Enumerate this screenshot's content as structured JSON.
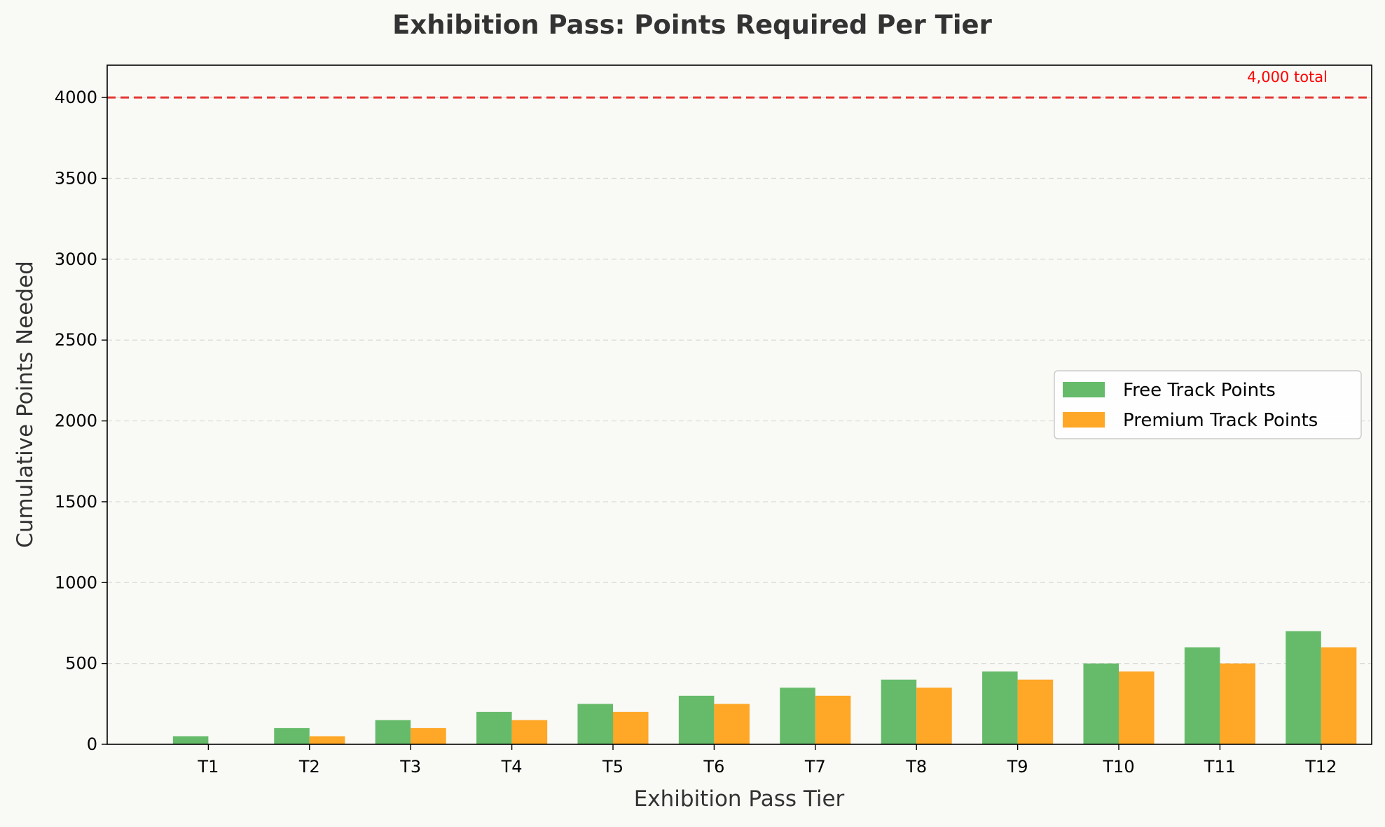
{
  "chart_data": {
    "type": "bar",
    "title": "Exhibition Pass: Points Required Per Tier",
    "xlabel": "Exhibition Pass Tier",
    "ylabel": "Cumulative Points Needed",
    "categories": [
      "T1",
      "T2",
      "T3",
      "T4",
      "T5",
      "T6",
      "T7",
      "T8",
      "T9",
      "T10",
      "T11",
      "T12"
    ],
    "series": [
      {
        "name": "Free Track Points",
        "color": "#66bb6a",
        "values": [
          50,
          100,
          150,
          200,
          250,
          300,
          350,
          400,
          450,
          500,
          600,
          700
        ]
      },
      {
        "name": "Premium Track Points",
        "color": "#ffa726",
        "values": [
          0,
          50,
          100,
          150,
          200,
          250,
          300,
          350,
          400,
          450,
          500,
          600
        ]
      }
    ],
    "ylim": [
      0,
      4200
    ],
    "yticks": [
      0,
      500,
      1000,
      1500,
      2000,
      2500,
      3000,
      3500,
      4000
    ],
    "grid": "y",
    "legend": "center-right",
    "reference_line": {
      "value": 4000,
      "label": "4,000 total",
      "color": "#e53935",
      "style": "dashed"
    }
  }
}
